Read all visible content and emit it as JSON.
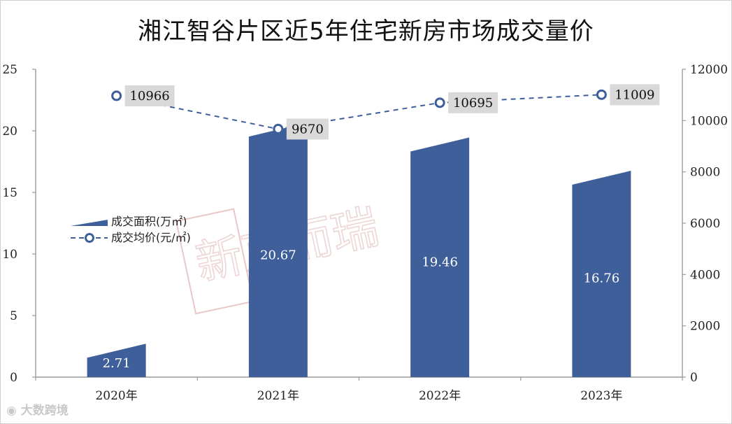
{
  "colors": {
    "bar": "#3f5f9b",
    "line": "#3f5f9b",
    "label_box": "#d9d9d9",
    "axis": "#9a9a9a"
  },
  "branding": {
    "watermark": "新克而瑞",
    "source_logo": "大数跨境",
    "logo_icon": "camera-eye-icon"
  },
  "chart_data": {
    "type": "bar",
    "title": "湘江智谷片区近5年住宅新房市场成交量价",
    "categories": [
      "2020年",
      "2021年",
      "2022年",
      "2023年"
    ],
    "series": [
      {
        "name": "成交面积(万㎡)",
        "type": "bar",
        "axis": "left",
        "values": [
          2.71,
          20.67,
          19.46,
          16.76
        ],
        "labels": [
          "2.71",
          "20.67",
          "19.46",
          "16.76"
        ]
      },
      {
        "name": "成交均价(元/㎡)",
        "type": "line",
        "axis": "right",
        "values": [
          10966,
          9670,
          10695,
          11009
        ],
        "labels": [
          "10966",
          "9670",
          "10695",
          "11009"
        ]
      }
    ],
    "y_left": {
      "min": 0,
      "max": 25,
      "ticks": [
        0,
        5,
        10,
        15,
        20,
        25
      ],
      "tick_labels": [
        "0",
        "5",
        "10",
        "15",
        "20",
        "25"
      ]
    },
    "y_right": {
      "min": 0,
      "max": 12000,
      "ticks": [
        0,
        2000,
        4000,
        6000,
        8000,
        10000,
        12000
      ],
      "tick_labels": [
        "0",
        "2000",
        "4000",
        "6000",
        "8000",
        "10000",
        "12000"
      ]
    },
    "grid": false,
    "legend_position": "left-middle"
  }
}
